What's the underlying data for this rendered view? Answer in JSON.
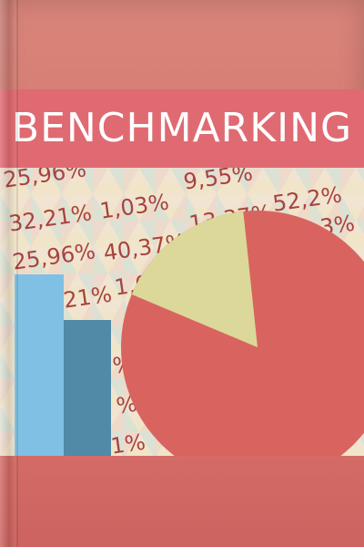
{
  "cover": {
    "title": "BENCHMARKING",
    "colors": {
      "background": "#d4756d",
      "title_band": "#e06a72",
      "title_text": "#ffffff",
      "numbers": "#a8433f",
      "bar_light": "#7fc0e4",
      "bar_dark": "#4f8aa6",
      "pie_main": "#d9645f",
      "pie_slice": "#dbd89a"
    },
    "background_numbers": [
      "25,96%",
      "9,55%",
      "32,21%",
      "1,03%",
      "13,37%",
      "52,2%",
      "25,96%",
      "40,37%",
      "3%",
      "21%",
      "1,0",
      "%",
      "%",
      "1%"
    ],
    "bar_values": [
      0.63,
      0.47
    ],
    "pie_slice_fraction": 0.17
  }
}
